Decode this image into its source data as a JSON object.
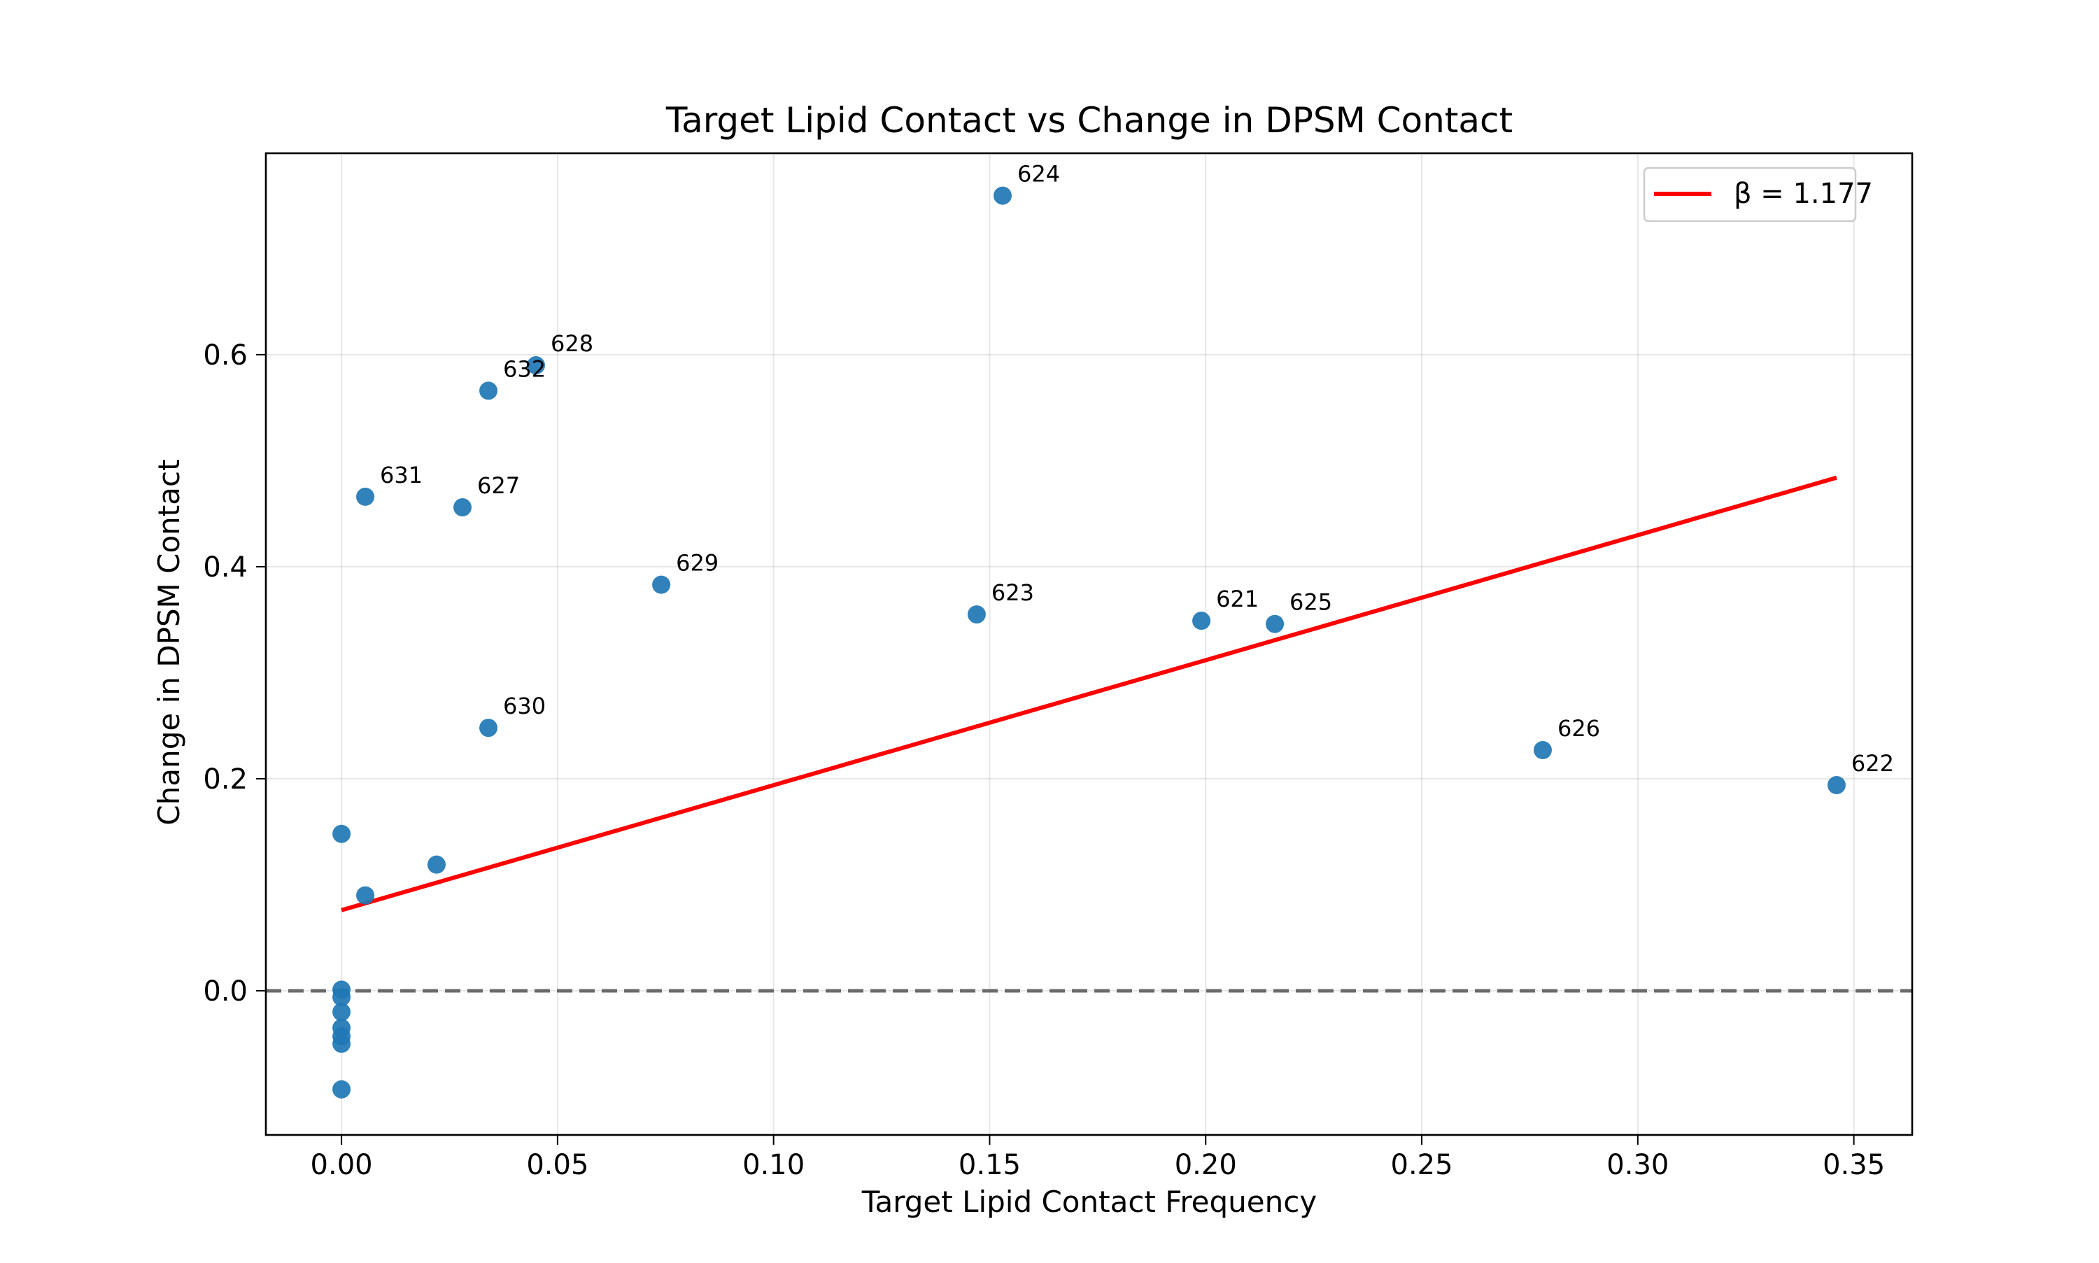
{
  "chart_data": {
    "type": "scatter",
    "title": "Target Lipid Contact vs Change in DPSM Contact",
    "xlabel": "Target Lipid Contact Frequency",
    "ylabel": "Change in DPSM Contact",
    "xlim": [
      -0.0175,
      0.3635
    ],
    "ylim": [
      -0.136,
      0.79
    ],
    "xticks": [
      0.0,
      0.05,
      0.1,
      0.15,
      0.2,
      0.25,
      0.3,
      0.35
    ],
    "xtick_labels": [
      "0.00",
      "0.05",
      "0.10",
      "0.15",
      "0.20",
      "0.25",
      "0.30",
      "0.35"
    ],
    "yticks": [
      0.0,
      0.2,
      0.4,
      0.6
    ],
    "ytick_labels": [
      "0.0",
      "0.2",
      "0.4",
      "0.6"
    ],
    "grid": true,
    "legend_position": "top-right",
    "point_color": "#1f77b4",
    "points": [
      {
        "x": 0.153,
        "y": 0.75,
        "label": "624"
      },
      {
        "x": 0.045,
        "y": 0.59,
        "label": "628"
      },
      {
        "x": 0.034,
        "y": 0.566,
        "label": "632"
      },
      {
        "x": 0.0055,
        "y": 0.466,
        "label": "631"
      },
      {
        "x": 0.028,
        "y": 0.456,
        "label": "627"
      },
      {
        "x": 0.074,
        "y": 0.383,
        "label": "629"
      },
      {
        "x": 0.147,
        "y": 0.355,
        "label": "623"
      },
      {
        "x": 0.199,
        "y": 0.349,
        "label": "621"
      },
      {
        "x": 0.216,
        "y": 0.346,
        "label": "625"
      },
      {
        "x": 0.034,
        "y": 0.248,
        "label": "630"
      },
      {
        "x": 0.278,
        "y": 0.227,
        "label": "626"
      },
      {
        "x": 0.346,
        "y": 0.194,
        "label": "622"
      },
      {
        "x": 0.0,
        "y": 0.148,
        "label": ""
      },
      {
        "x": 0.022,
        "y": 0.119,
        "label": ""
      },
      {
        "x": 0.0055,
        "y": 0.09,
        "label": ""
      },
      {
        "x": 0.0,
        "y": 0.001,
        "label": ""
      },
      {
        "x": 0.0,
        "y": -0.006,
        "label": ""
      },
      {
        "x": 0.0,
        "y": -0.02,
        "label": ""
      },
      {
        "x": 0.0,
        "y": -0.035,
        "label": ""
      },
      {
        "x": 0.0,
        "y": -0.043,
        "label": ""
      },
      {
        "x": 0.0,
        "y": -0.05,
        "label": ""
      },
      {
        "x": 0.0,
        "y": -0.093,
        "label": ""
      }
    ],
    "fit_line": {
      "name": "β = 1.177",
      "color": "#ff0000",
      "x": [
        0.0,
        0.346
      ],
      "y": [
        0.076,
        0.484
      ]
    },
    "reference_line": {
      "y": 0.0,
      "color": "#6b6b6b",
      "style": "dashed"
    }
  }
}
